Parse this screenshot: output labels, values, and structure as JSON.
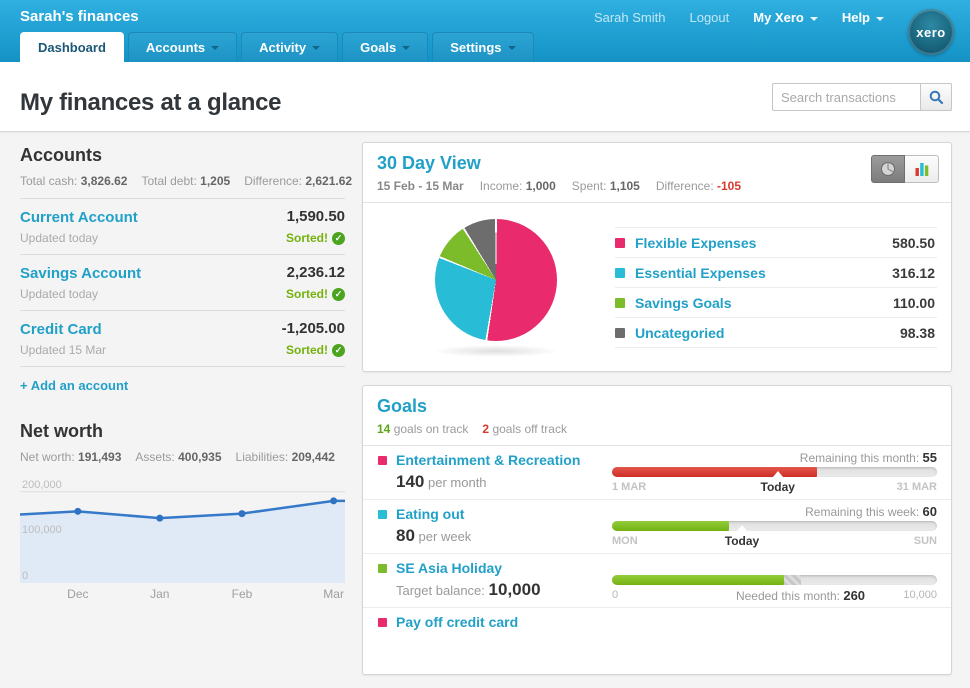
{
  "header": {
    "app_title": "Sarah's finances",
    "user_name": "Sarah Smith",
    "logout_label": "Logout",
    "my_xero_label": "My Xero",
    "help_label": "Help",
    "logo_text": "xero",
    "tabs": [
      {
        "label": "Dashboard",
        "active": true
      },
      {
        "label": "Accounts",
        "active": false
      },
      {
        "label": "Activity",
        "active": false
      },
      {
        "label": "Goals",
        "active": false
      },
      {
        "label": "Settings",
        "active": false
      }
    ]
  },
  "page": {
    "title": "My finances at a glance",
    "search_placeholder": "Search transactions"
  },
  "icons": {
    "check_glyph": "✓"
  },
  "accounts": {
    "title": "Accounts",
    "stats": [
      {
        "label": "Total cash:",
        "value": "3,826.62"
      },
      {
        "label": "Total debt:",
        "value": "1,205"
      },
      {
        "label": "Difference:",
        "value": "2,621.62"
      }
    ],
    "items": [
      {
        "name": "Current Account",
        "updated": "Updated today",
        "amount": "1,590.50",
        "status": "Sorted!"
      },
      {
        "name": "Savings Account",
        "updated": "Updated today",
        "amount": "2,236.12",
        "status": "Sorted!"
      },
      {
        "name": "Credit Card",
        "updated": "Updated 15 Mar",
        "amount": "-1,205.00",
        "status": "Sorted!"
      }
    ],
    "add_link": "+ Add an account"
  },
  "net_worth": {
    "title": "Net worth",
    "stats": [
      {
        "label": "Net worth:",
        "value": "191,493"
      },
      {
        "label": "Assets:",
        "value": "400,935"
      },
      {
        "label": "Liabilities:",
        "value": "209,442"
      }
    ]
  },
  "thirty_day": {
    "title": "30 Day View",
    "date_range": "15 Feb - 15 Mar",
    "stats": [
      {
        "label": "Income:",
        "value": "1,000",
        "negative": false
      },
      {
        "label": "Spent:",
        "value": "1,105",
        "negative": false
      },
      {
        "label": "Difference:",
        "value": "-105",
        "negative": true
      }
    ],
    "legend": [
      {
        "label": "Flexible Expenses",
        "value": "580.50",
        "color": "#e92a6d"
      },
      {
        "label": "Essential Expenses",
        "value": "316.12",
        "color": "#29bcd6"
      },
      {
        "label": "Savings Goals",
        "value": "110.00",
        "color": "#7cbb2a"
      },
      {
        "label": "Uncategoried",
        "value": "98.38",
        "color": "#6d6d6d"
      }
    ]
  },
  "goals": {
    "title": "Goals",
    "on_track_count": "14",
    "on_track_label": "goals on track",
    "off_track_count": "2",
    "off_track_label": "goals off track",
    "items": [
      {
        "name": "Entertainment & Recreation",
        "icon_color": "#e92a6d",
        "amount": "140",
        "amount_label": "per month",
        "remaining_label": "Remaining this month:",
        "remaining_value": "55",
        "bar_color": "red",
        "fill_pct": 63,
        "today_pct": 51,
        "axis_left": "1 MAR",
        "axis_center": "Today",
        "axis_center_pct": 51,
        "axis_right": "31 MAR"
      },
      {
        "name": "Eating out",
        "icon_color": "#29bcd6",
        "amount": "80",
        "amount_label": "per week",
        "remaining_label": "Remaining this week:",
        "remaining_value": "60",
        "bar_color": "green",
        "fill_pct": 36,
        "today_pct": 40,
        "axis_left": "MON",
        "axis_center": "Today",
        "axis_center_pct": 40,
        "axis_right": "SUN"
      },
      {
        "name": "SE Asia Holiday",
        "icon_color": "#7cbb2a",
        "amount_label": "Target balance:",
        "amount": "10,000",
        "bar_color": "green",
        "fill_pct": 53,
        "hatch_end_pct": 58,
        "axis_left": "0",
        "axis_center_label": "Needed this month:",
        "axis_center_value": "260",
        "axis_center_pct": 58,
        "axis_right": "10,000"
      },
      {
        "name": "Pay off credit card",
        "icon_color": "#e92a6d"
      }
    ]
  },
  "chart_data": [
    {
      "type": "pie",
      "title": "30 Day View",
      "labels": [
        "Flexible Expenses",
        "Essential Expenses",
        "Savings Goals",
        "Uncategoried"
      ],
      "values": [
        580.5,
        316.12,
        110.0,
        98.38
      ],
      "colors": [
        "#e92a6d",
        "#29bcd6",
        "#7cbb2a",
        "#6d6d6d"
      ],
      "total": 1105.0,
      "start_angle_deg": 0,
      "direction": "clockwise"
    },
    {
      "type": "area",
      "title": "Net worth",
      "x_tick_labels": [
        "Dec",
        "Jan",
        "Feb",
        "Mar"
      ],
      "x_tick_pct": [
        17.8,
        43,
        68.3,
        96.5
      ],
      "x_pct": [
        0,
        17.8,
        43,
        68.3,
        96.5
      ],
      "values": [
        150000,
        157000,
        142000,
        152000,
        180000
      ],
      "dot_indices": [
        1,
        2,
        3,
        4
      ],
      "y_ticks": [
        {
          "label": "200,000",
          "value": 200000
        },
        {
          "label": "100,000",
          "value": 100000
        },
        {
          "label": "0",
          "value": 0
        }
      ],
      "ylim": [
        0,
        230000
      ],
      "grid": true,
      "line_color": "#3579c8",
      "area_color": "#e0eaf6",
      "dot_color": "#2e72c4"
    }
  ]
}
